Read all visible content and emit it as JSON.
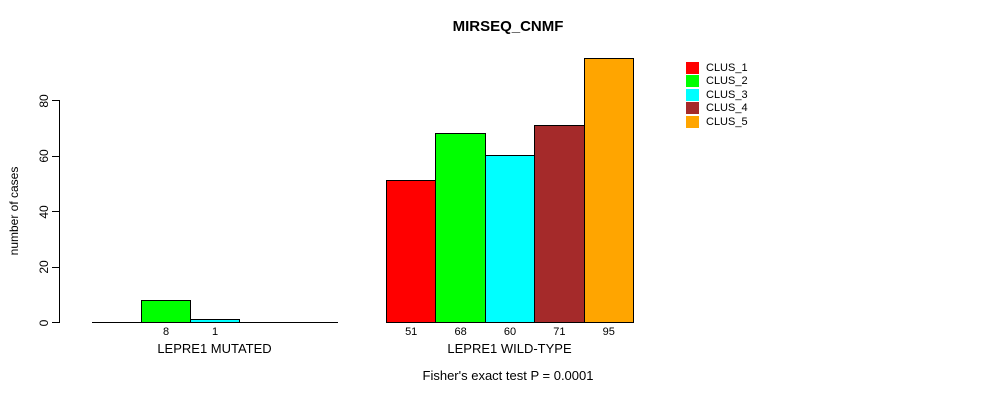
{
  "title": "MIRSEQ_CNMF",
  "y_axis": {
    "label": "number of cases",
    "ticks": [
      0,
      20,
      40,
      60,
      80
    ]
  },
  "legend": {
    "position": "right",
    "items": [
      {
        "label": "CLUS_1",
        "color": "#FF0000"
      },
      {
        "label": "CLUS_2",
        "color": "#00FF00"
      },
      {
        "label": "CLUS_3",
        "color": "#00FFFF"
      },
      {
        "label": "CLUS_4",
        "color": "#A52A2A"
      },
      {
        "label": "CLUS_5",
        "color": "#FFA500"
      }
    ]
  },
  "annotation": "Fisher's exact test P = 0.0001",
  "chart_data": {
    "type": "bar",
    "title": "MIRSEQ_CNMF",
    "xlabel": "",
    "ylabel": "number of cases",
    "yticks": [
      0,
      20,
      40,
      60,
      80
    ],
    "ylim": [
      0,
      95
    ],
    "grid": false,
    "legend_position": "right",
    "series_names": [
      "CLUS_1",
      "CLUS_2",
      "CLUS_3",
      "CLUS_4",
      "CLUS_5"
    ],
    "series_colors": [
      "#FF0000",
      "#00FF00",
      "#00FFFF",
      "#A52A2A",
      "#FFA500"
    ],
    "groups": [
      {
        "label": "LEPRE1 MUTATED",
        "values": [
          0,
          8,
          1,
          0,
          0
        ]
      },
      {
        "label": "LEPRE1 WILD-TYPE",
        "values": [
          51,
          68,
          60,
          71,
          95
        ]
      }
    ],
    "bar_value_labels": {
      "shown": true,
      "hidden_when_zero": true
    },
    "annotation": "Fisher's exact test P = 0.0001"
  }
}
